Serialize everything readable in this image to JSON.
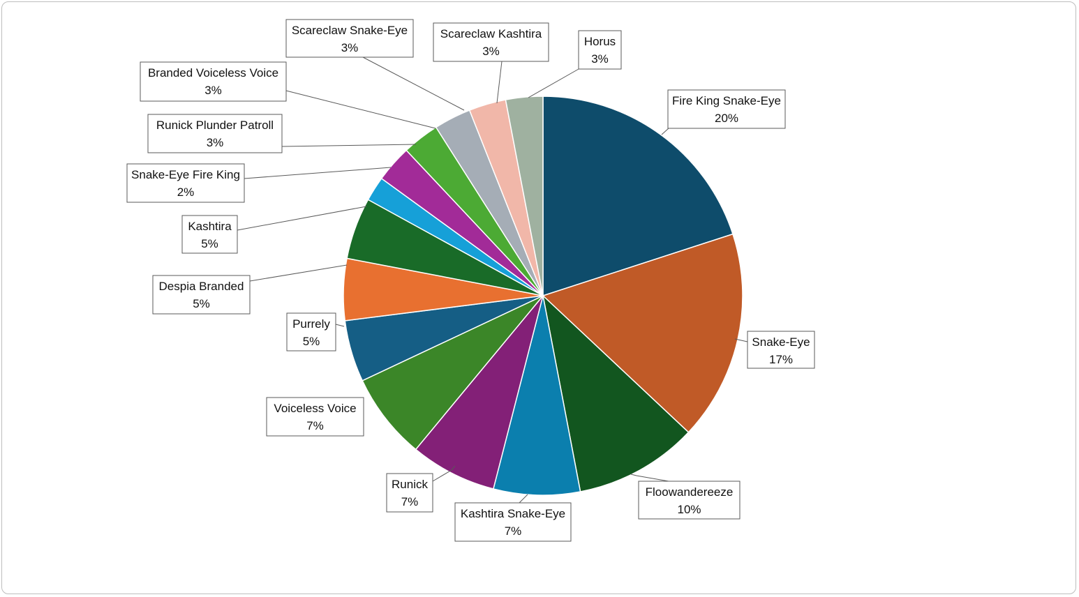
{
  "chart_data": {
    "type": "pie",
    "start_angle_deg": 0,
    "direction": "clockwise",
    "data_labels": "category-and-percent",
    "slices": [
      {
        "label": "Fire King Snake-Eye",
        "value": 20,
        "display": "20%",
        "color": "#0e4c6b"
      },
      {
        "label": "Snake-Eye",
        "value": 17,
        "display": "17%",
        "color": "#c05a27"
      },
      {
        "label": "Floowandereeze",
        "value": 10,
        "display": "10%",
        "color": "#12561f"
      },
      {
        "label": "Kashtira Snake-Eye",
        "value": 7,
        "display": "7%",
        "color": "#0b7fae"
      },
      {
        "label": "Runick",
        "value": 7,
        "display": "7%",
        "color": "#832077"
      },
      {
        "label": "Voiceless Voice",
        "value": 7,
        "display": "7%",
        "color": "#3b8628"
      },
      {
        "label": "Purrely",
        "value": 5,
        "display": "5%",
        "color": "#155e85"
      },
      {
        "label": "Despia Branded",
        "value": 5,
        "display": "5%",
        "color": "#e87030"
      },
      {
        "label": "Kashtira",
        "value": 5,
        "display": "5%",
        "color": "#196b28"
      },
      {
        "label": "Snake-Eye Fire King",
        "value": 2,
        "display": "2%",
        "color": "#16a0d8"
      },
      {
        "label": "Runick Plunder Patroll",
        "value": 3,
        "display": "3%",
        "color": "#a22b98"
      },
      {
        "label": "Branded Voiceless Voice",
        "value": 3,
        "display": "3%",
        "color": "#4caa34"
      },
      {
        "label": "Scareclaw Snake-Eye",
        "value": 3,
        "display": "3%",
        "color": "#a5adb6"
      },
      {
        "label": "Scareclaw Kashtira",
        "value": 3,
        "display": "3%",
        "color": "#f1b7a9"
      },
      {
        "label": "Horus",
        "value": 3,
        "display": "3%",
        "color": "#9fb1a0"
      }
    ]
  }
}
